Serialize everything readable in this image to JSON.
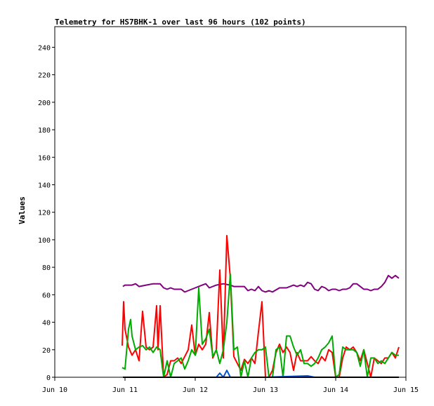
{
  "chart_data": {
    "type": "line",
    "title": "Telemetry for HS7BHK-1 over last 96 hours (102 points)",
    "ylabel": "Values",
    "xlabel": "",
    "ylim": [
      0,
      255
    ],
    "yticks": [
      0,
      20,
      40,
      60,
      80,
      100,
      120,
      140,
      160,
      180,
      200,
      220,
      240
    ],
    "xlim": [
      0,
      5
    ],
    "xticks": [
      {
        "v": 0,
        "label": "Jun 10"
      },
      {
        "v": 1,
        "label": "Jun 11"
      },
      {
        "v": 2,
        "label": "Jun 12"
      },
      {
        "v": 3,
        "label": "Jun 13"
      },
      {
        "v": 4,
        "label": "Jun 14"
      },
      {
        "v": 5,
        "label": "Jun 15"
      }
    ],
    "grid": false,
    "series": [
      {
        "color": "#800080",
        "points": [
          [
            0.97,
            66
          ],
          [
            1.0,
            67
          ],
          [
            1.1,
            67
          ],
          [
            1.15,
            68
          ],
          [
            1.2,
            66
          ],
          [
            1.3,
            67
          ],
          [
            1.4,
            68
          ],
          [
            1.5,
            68
          ],
          [
            1.55,
            65
          ],
          [
            1.6,
            64
          ],
          [
            1.65,
            65
          ],
          [
            1.7,
            64
          ],
          [
            1.8,
            64
          ],
          [
            1.85,
            62
          ],
          [
            1.9,
            63
          ],
          [
            2.0,
            65
          ],
          [
            2.1,
            67
          ],
          [
            2.15,
            68
          ],
          [
            2.2,
            65
          ],
          [
            2.3,
            67
          ],
          [
            2.4,
            68
          ],
          [
            2.5,
            67
          ],
          [
            2.55,
            66
          ],
          [
            2.6,
            66
          ],
          [
            2.7,
            66
          ],
          [
            2.75,
            63
          ],
          [
            2.8,
            64
          ],
          [
            2.85,
            63
          ],
          [
            2.9,
            66
          ],
          [
            2.95,
            63
          ],
          [
            3.0,
            62
          ],
          [
            3.05,
            63
          ],
          [
            3.1,
            62
          ],
          [
            3.2,
            65
          ],
          [
            3.3,
            65
          ],
          [
            3.35,
            66
          ],
          [
            3.4,
            67
          ],
          [
            3.45,
            66
          ],
          [
            3.5,
            67
          ],
          [
            3.55,
            66
          ],
          [
            3.6,
            69
          ],
          [
            3.65,
            68
          ],
          [
            3.7,
            64
          ],
          [
            3.75,
            63
          ],
          [
            3.8,
            66
          ],
          [
            3.85,
            65
          ],
          [
            3.9,
            63
          ],
          [
            3.95,
            64
          ],
          [
            4.0,
            64
          ],
          [
            4.05,
            63
          ],
          [
            4.1,
            64
          ],
          [
            4.15,
            64
          ],
          [
            4.2,
            65
          ],
          [
            4.25,
            68
          ],
          [
            4.3,
            68
          ],
          [
            4.35,
            66
          ],
          [
            4.4,
            64
          ],
          [
            4.45,
            64
          ],
          [
            4.5,
            63
          ],
          [
            4.55,
            64
          ],
          [
            4.6,
            64
          ],
          [
            4.65,
            66
          ],
          [
            4.7,
            69
          ],
          [
            4.75,
            74
          ],
          [
            4.8,
            72
          ],
          [
            4.85,
            74
          ],
          [
            4.9,
            72
          ]
        ]
      },
      {
        "color": "#ff0000",
        "points": [
          [
            0.96,
            23
          ],
          [
            0.98,
            55
          ],
          [
            1.0,
            35
          ],
          [
            1.05,
            22
          ],
          [
            1.1,
            16
          ],
          [
            1.15,
            20
          ],
          [
            1.2,
            12
          ],
          [
            1.25,
            48
          ],
          [
            1.3,
            22
          ],
          [
            1.35,
            20
          ],
          [
            1.4,
            22
          ],
          [
            1.45,
            52
          ],
          [
            1.47,
            20
          ],
          [
            1.5,
            52
          ],
          [
            1.55,
            0
          ],
          [
            1.6,
            2
          ],
          [
            1.65,
            12
          ],
          [
            1.7,
            12
          ],
          [
            1.75,
            14
          ],
          [
            1.8,
            10
          ],
          [
            1.85,
            15
          ],
          [
            1.9,
            20
          ],
          [
            1.95,
            38
          ],
          [
            2.0,
            16
          ],
          [
            2.05,
            24
          ],
          [
            2.1,
            20
          ],
          [
            2.15,
            24
          ],
          [
            2.2,
            47
          ],
          [
            2.25,
            14
          ],
          [
            2.3,
            20
          ],
          [
            2.35,
            78
          ],
          [
            2.4,
            14
          ],
          [
            2.45,
            103
          ],
          [
            2.5,
            72
          ],
          [
            2.55,
            15
          ],
          [
            2.6,
            10
          ],
          [
            2.65,
            5
          ],
          [
            2.7,
            13
          ],
          [
            2.75,
            10
          ],
          [
            2.8,
            14
          ],
          [
            2.85,
            10
          ],
          [
            2.9,
            33
          ],
          [
            2.95,
            55
          ],
          [
            3.0,
            0
          ],
          [
            3.05,
            0
          ],
          [
            3.1,
            5
          ],
          [
            3.15,
            18
          ],
          [
            3.2,
            24
          ],
          [
            3.25,
            18
          ],
          [
            3.3,
            22
          ],
          [
            3.35,
            18
          ],
          [
            3.4,
            5
          ],
          [
            3.45,
            18
          ],
          [
            3.5,
            12
          ],
          [
            3.55,
            12
          ],
          [
            3.6,
            12
          ],
          [
            3.65,
            15
          ],
          [
            3.7,
            12
          ],
          [
            3.75,
            10
          ],
          [
            3.8,
            15
          ],
          [
            3.85,
            12
          ],
          [
            3.9,
            20
          ],
          [
            3.95,
            18
          ],
          [
            4.0,
            0
          ],
          [
            4.05,
            0
          ],
          [
            4.1,
            14
          ],
          [
            4.15,
            22
          ],
          [
            4.2,
            20
          ],
          [
            4.25,
            22
          ],
          [
            4.3,
            18
          ],
          [
            4.35,
            12
          ],
          [
            4.4,
            20
          ],
          [
            4.45,
            10
          ],
          [
            4.5,
            0
          ],
          [
            4.55,
            14
          ],
          [
            4.6,
            12
          ],
          [
            4.65,
            10
          ],
          [
            4.7,
            14
          ],
          [
            4.75,
            14
          ],
          [
            4.8,
            18
          ],
          [
            4.85,
            14
          ],
          [
            4.9,
            22
          ]
        ]
      },
      {
        "color": "#00aa00",
        "points": [
          [
            0.96,
            7
          ],
          [
            1.0,
            6
          ],
          [
            1.05,
            35
          ],
          [
            1.08,
            42
          ],
          [
            1.1,
            30
          ],
          [
            1.15,
            20
          ],
          [
            1.2,
            22
          ],
          [
            1.25,
            23
          ],
          [
            1.3,
            20
          ],
          [
            1.35,
            22
          ],
          [
            1.4,
            18
          ],
          [
            1.45,
            22
          ],
          [
            1.5,
            20
          ],
          [
            1.55,
            0
          ],
          [
            1.6,
            12
          ],
          [
            1.65,
            0
          ],
          [
            1.7,
            10
          ],
          [
            1.75,
            12
          ],
          [
            1.8,
            14
          ],
          [
            1.85,
            6
          ],
          [
            1.9,
            12
          ],
          [
            1.95,
            20
          ],
          [
            2.0,
            16
          ],
          [
            2.05,
            65
          ],
          [
            2.1,
            24
          ],
          [
            2.15,
            28
          ],
          [
            2.2,
            35
          ],
          [
            2.25,
            15
          ],
          [
            2.3,
            20
          ],
          [
            2.35,
            10
          ],
          [
            2.4,
            20
          ],
          [
            2.45,
            40
          ],
          [
            2.5,
            75
          ],
          [
            2.55,
            20
          ],
          [
            2.6,
            22
          ],
          [
            2.65,
            0
          ],
          [
            2.7,
            12
          ],
          [
            2.75,
            0
          ],
          [
            2.8,
            14
          ],
          [
            2.85,
            18
          ],
          [
            2.9,
            20
          ],
          [
            2.95,
            20
          ],
          [
            3.0,
            22
          ],
          [
            3.05,
            0
          ],
          [
            3.1,
            0
          ],
          [
            3.15,
            20
          ],
          [
            3.2,
            22
          ],
          [
            3.25,
            0
          ],
          [
            3.3,
            30
          ],
          [
            3.35,
            30
          ],
          [
            3.4,
            22
          ],
          [
            3.45,
            16
          ],
          [
            3.5,
            20
          ],
          [
            3.55,
            10
          ],
          [
            3.6,
            10
          ],
          [
            3.65,
            8
          ],
          [
            3.7,
            10
          ],
          [
            3.75,
            14
          ],
          [
            3.8,
            20
          ],
          [
            3.85,
            22
          ],
          [
            3.9,
            25
          ],
          [
            3.95,
            30
          ],
          [
            4.0,
            0
          ],
          [
            4.05,
            2
          ],
          [
            4.1,
            22
          ],
          [
            4.15,
            20
          ],
          [
            4.2,
            20
          ],
          [
            4.25,
            20
          ],
          [
            4.3,
            18
          ],
          [
            4.35,
            8
          ],
          [
            4.4,
            20
          ],
          [
            4.45,
            0
          ],
          [
            4.5,
            14
          ],
          [
            4.55,
            14
          ],
          [
            4.6,
            10
          ],
          [
            4.65,
            12
          ],
          [
            4.7,
            10
          ],
          [
            4.75,
            14
          ],
          [
            4.8,
            18
          ],
          [
            4.85,
            16
          ],
          [
            4.9,
            16
          ]
        ]
      },
      {
        "color": "#0055cc",
        "points": [
          [
            0.97,
            0
          ],
          [
            2.3,
            0
          ],
          [
            2.35,
            3
          ],
          [
            2.4,
            0
          ],
          [
            2.45,
            5
          ],
          [
            2.5,
            0
          ],
          [
            3.0,
            0
          ],
          [
            3.6,
            1
          ],
          [
            3.7,
            0
          ],
          [
            4.8,
            0
          ],
          [
            4.9,
            0
          ]
        ]
      },
      {
        "color": "#000000",
        "points": [
          [
            0.97,
            0
          ],
          [
            4.9,
            0
          ]
        ]
      }
    ]
  }
}
